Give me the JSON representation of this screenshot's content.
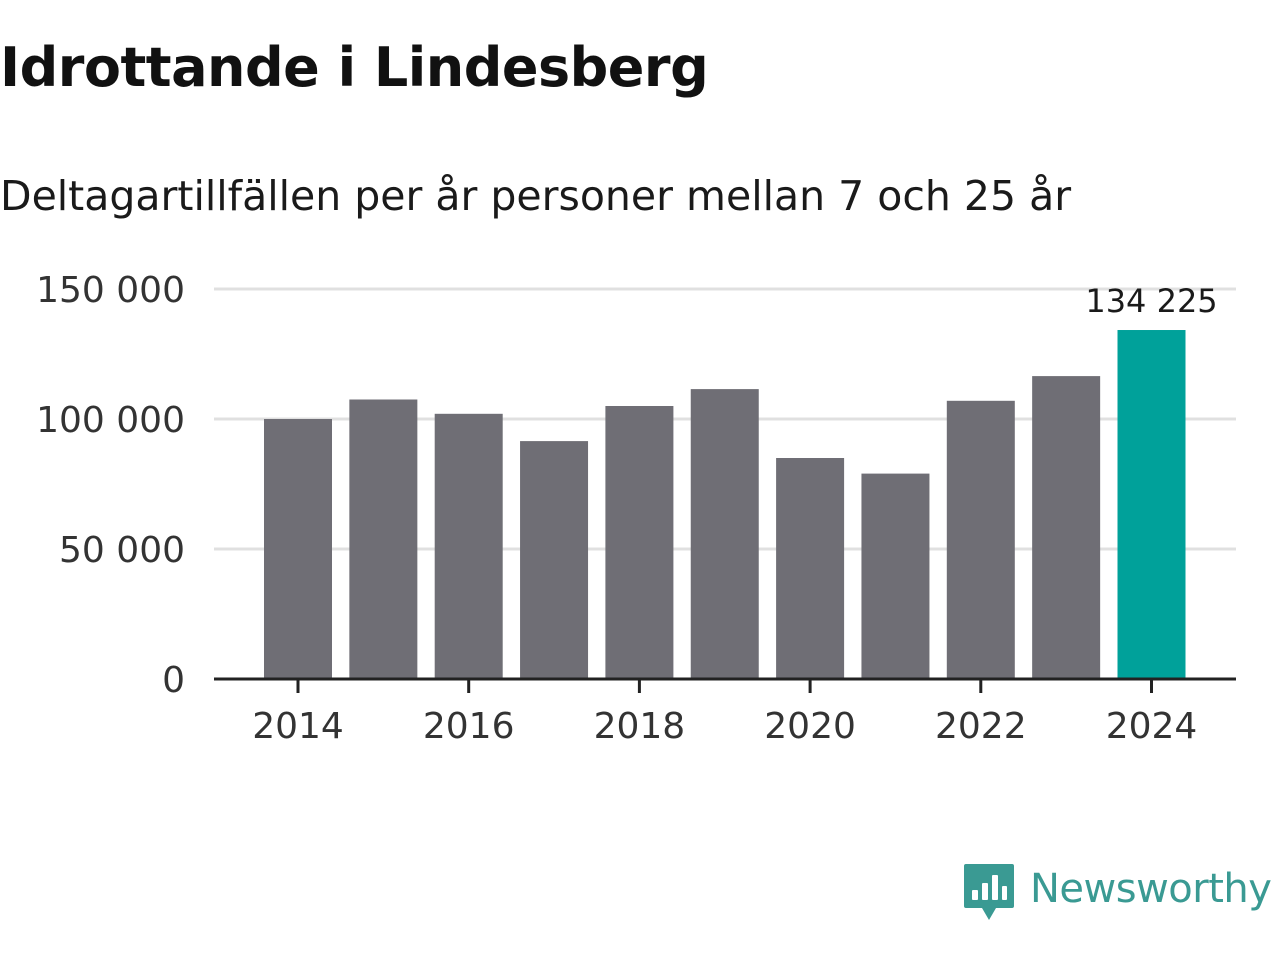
{
  "header": {
    "title": "Idrottande i Lindesberg",
    "subtitle": "Deltagartillfällen per år personer mellan 7 och 25 år"
  },
  "brand": {
    "name": "Newsworthy",
    "icon": "newsworthy-logo-icon",
    "color": "#3a9a93"
  },
  "colors": {
    "bar": "#6f6e75",
    "highlight": "#00a19a",
    "grid": "#e0e0e0",
    "axis": "#222222"
  },
  "chart_data": {
    "type": "bar",
    "title": "Idrottande i Lindesberg",
    "subtitle": "Deltagartillfällen per år personer mellan 7 och 25 år",
    "xlabel": "",
    "ylabel": "",
    "categories": [
      2014,
      2015,
      2016,
      2017,
      2018,
      2019,
      2020,
      2021,
      2022,
      2023,
      2024
    ],
    "values": [
      100000,
      107500,
      102000,
      91500,
      105000,
      111500,
      85000,
      79000,
      107000,
      116500,
      134225
    ],
    "highlight_index": 10,
    "highlight_label": "134 225",
    "ylim": [
      0,
      150000
    ],
    "yticks": [
      0,
      50000,
      100000,
      150000
    ],
    "ytick_labels": [
      "0",
      "50 000",
      "100 000",
      "150 000"
    ],
    "xticks": [
      2014,
      2016,
      2018,
      2020,
      2022,
      2024
    ],
    "xtick_labels": [
      "2014",
      "2016",
      "2018",
      "2020",
      "2022",
      "2024"
    ],
    "grid": true,
    "legend": "none"
  }
}
